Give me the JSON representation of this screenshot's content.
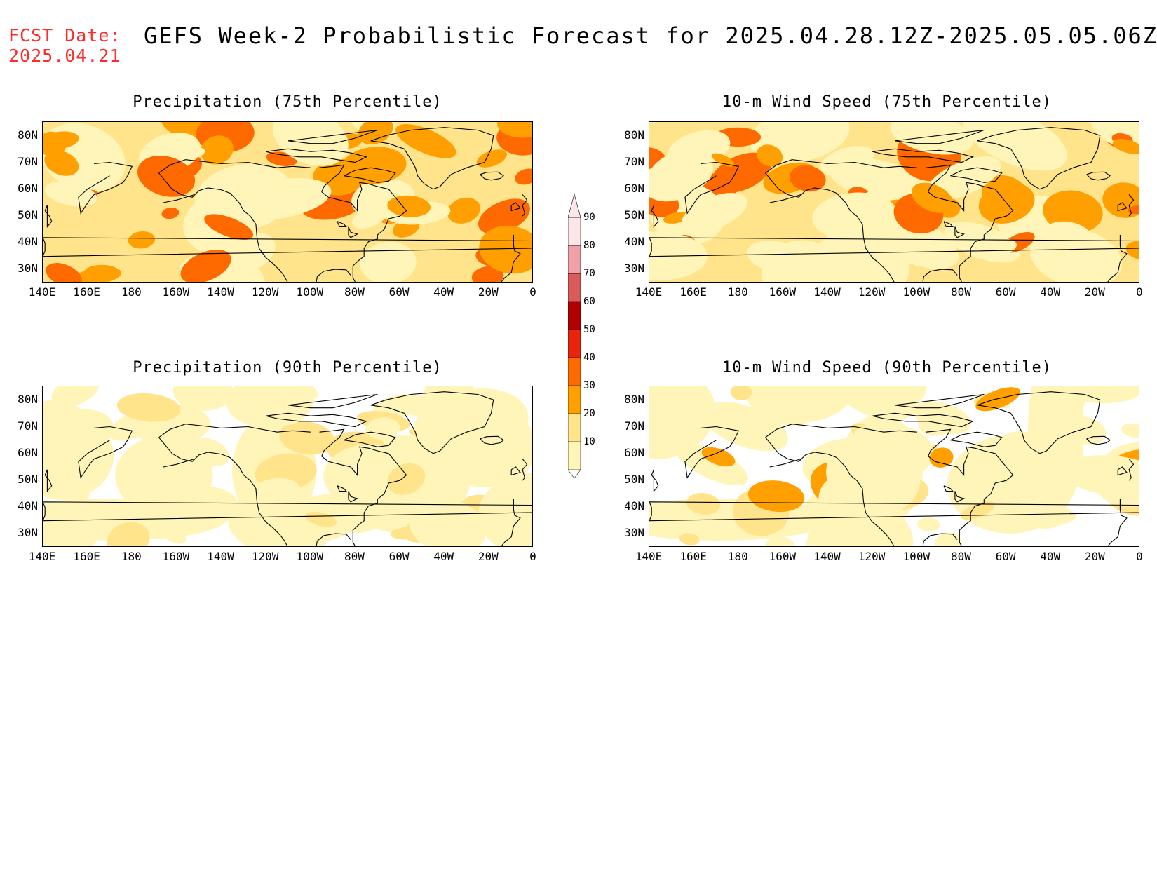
{
  "header": {
    "fcst_label": "FCST Date:",
    "fcst_date": "2025.04.21",
    "title": "GEFS Week-2 Probabilistic Forecast for 2025.04.28.12Z-2025.05.05.06Z"
  },
  "panels": [
    {
      "title": "Precipitation (75th Percentile)",
      "intensity": "moderate"
    },
    {
      "title": "10-m Wind Speed (75th Percentile)",
      "intensity": "strong"
    },
    {
      "title": "Precipitation (90th Percentile)",
      "intensity": "weak"
    },
    {
      "title": "10-m Wind Speed (90th Percentile)",
      "intensity": "weak"
    }
  ],
  "lat_labels": [
    "80N",
    "70N",
    "60N",
    "50N",
    "40N",
    "30N"
  ],
  "lon_labels": [
    "140E",
    "160E",
    "180",
    "160W",
    "140W",
    "120W",
    "100W",
    "80W",
    "60W",
    "40W",
    "20W",
    "0"
  ],
  "colorbar": {
    "levels": [
      "10",
      "20",
      "30",
      "40",
      "50",
      "60",
      "70",
      "80",
      "90"
    ],
    "colors": [
      "#fff5b8",
      "#ffe48c",
      "#ff9f00",
      "#ff6a00",
      "#e8250a",
      "#b00000",
      "#d95b5b",
      "#f0a0a8",
      "#fde6ea"
    ]
  }
}
